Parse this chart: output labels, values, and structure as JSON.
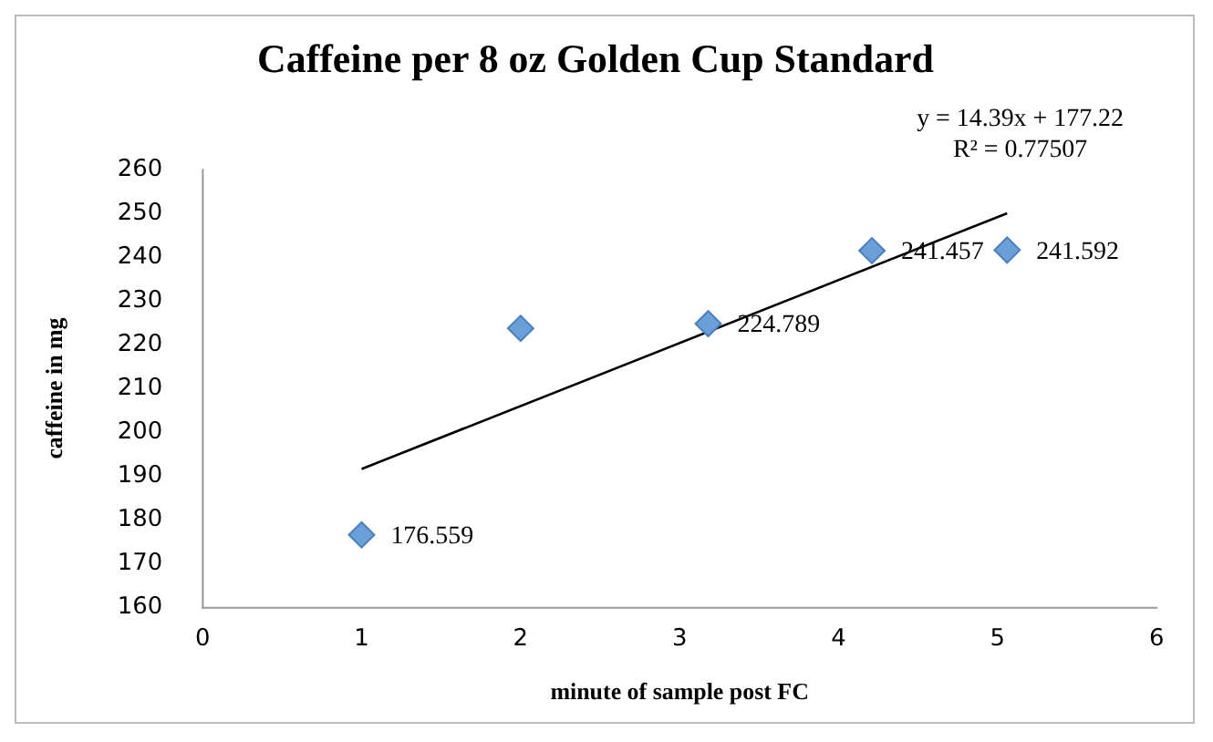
{
  "chart_data": {
    "type": "scatter",
    "title": "Caffeine per 8 oz Golden Cup Standard",
    "xlabel": "minute of sample post FC",
    "ylabel": "caffeine in mg",
    "series": [
      {
        "marker": "diamond",
        "color": "#6a9fd8",
        "x": [
          1,
          2,
          3.18,
          4.21,
          5.06
        ],
        "values": [
          176.559,
          223.7,
          224.789,
          241.457,
          241.592
        ],
        "value_labels": [
          "176.559",
          null,
          "224.789",
          "241.457",
          "241.592"
        ]
      },
      {
        "type": "line",
        "marker": "none",
        "color": "#000000",
        "x": [
          1,
          5.06
        ],
        "values": [
          191.6,
          250
        ]
      }
    ],
    "annotations": [
      "y = 14.39x + 177.22",
      "R² = 0.77507"
    ],
    "xlim": [
      0,
      6
    ],
    "xticks": [
      0,
      1,
      2,
      3,
      4,
      5,
      6
    ],
    "ylim": [
      160,
      260
    ],
    "yticks": [
      160,
      170,
      180,
      190,
      200,
      210,
      220,
      230,
      240,
      250,
      260
    ],
    "grid": false,
    "legend": false
  }
}
